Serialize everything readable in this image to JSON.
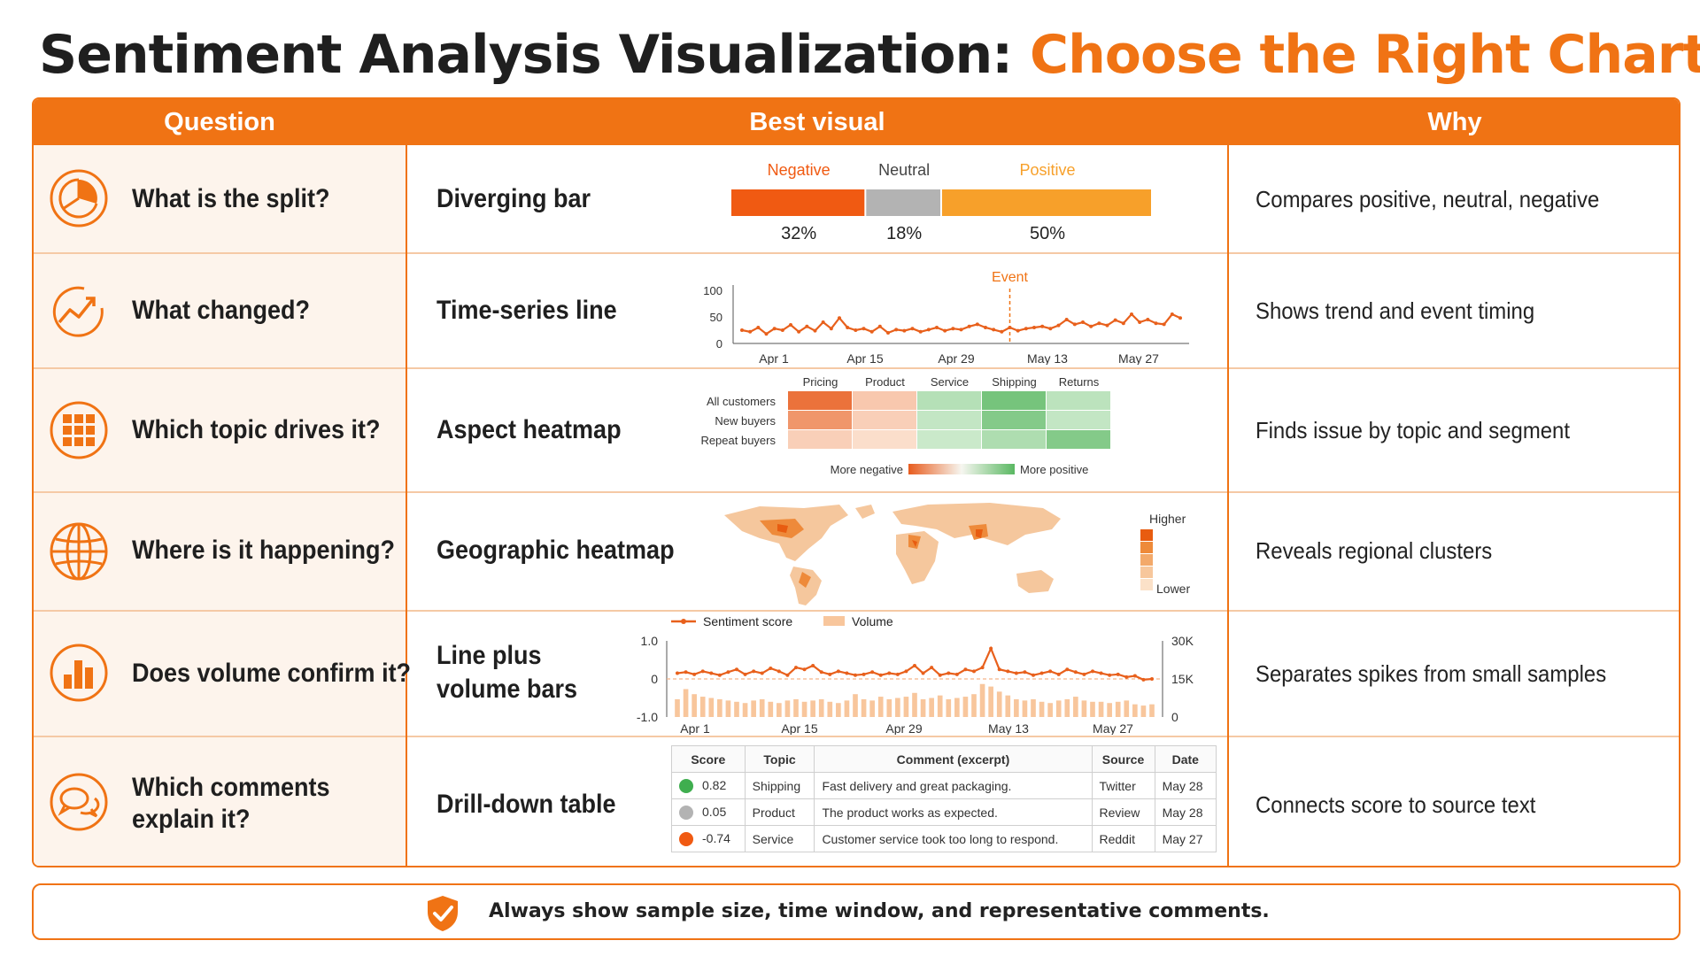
{
  "title": {
    "part1": "Sentiment Analysis Visualization: ",
    "part2": "Choose the Right Chart"
  },
  "colors": {
    "accent": "#f07314",
    "negative": "#f05a12",
    "neutral": "#b3b3b3",
    "positive": "#f7a02a",
    "positive_green": "#3fae4f"
  },
  "headers": {
    "question": "Question",
    "visual": "Best visual",
    "why": "Why"
  },
  "rows": [
    {
      "icon": "pie-chart-icon",
      "question": "What is the split?",
      "visual": "Diverging bar",
      "why": "Compares positive, neutral, negative"
    },
    {
      "icon": "trend-line-icon",
      "question": "What changed?",
      "visual": "Time-series line",
      "why": "Shows trend and event timing"
    },
    {
      "icon": "grid-icon",
      "question": "Which topic drives it?",
      "visual": "Aspect heatmap",
      "why": "Finds issue by topic and segment"
    },
    {
      "icon": "globe-icon",
      "question": "Where is it happening?",
      "visual": "Geographic heatmap",
      "why": "Reveals regional clusters"
    },
    {
      "icon": "bar-chart-icon",
      "question": "Does volume confirm it?",
      "visual_l1": "Line plus",
      "visual_l2": "volume bars",
      "why": "Separates spikes from small samples"
    },
    {
      "icon": "chat-bubbles-icon",
      "question_l1": "Which comments",
      "question_l2": "explain it?",
      "visual": "Drill-down table",
      "why": "Connects score to source text"
    }
  ],
  "chart_data": [
    {
      "type": "bar",
      "categories": [
        "Negative",
        "Neutral",
        "Positive"
      ],
      "values": [
        32,
        18,
        50
      ],
      "value_labels": [
        "32%",
        "18%",
        "50%"
      ]
    },
    {
      "type": "line",
      "x_ticks": [
        "Apr 1",
        "Apr 15",
        "Apr 29",
        "May 13",
        "May 27"
      ],
      "y_ticks": [
        "100",
        "50",
        "0"
      ],
      "ylim": [
        0,
        100
      ],
      "values": [
        25,
        22,
        30,
        18,
        28,
        25,
        35,
        22,
        32,
        24,
        40,
        28,
        48,
        30,
        25,
        28,
        22,
        32,
        20,
        26,
        24,
        28,
        22,
        26,
        30,
        24,
        28,
        26,
        32,
        36,
        30,
        26,
        22,
        30,
        24,
        28,
        30,
        32,
        28,
        34,
        45,
        36,
        40,
        32,
        38,
        34,
        44,
        38,
        55,
        40,
        45,
        38,
        36,
        55,
        48
      ],
      "event_index": 33,
      "event_label": "Event"
    },
    {
      "type": "heatmap",
      "columns": [
        "Pricing",
        "Product",
        "Service",
        "Shipping",
        "Returns"
      ],
      "rows": [
        "All customers",
        "New buyers",
        "Repeat buyers"
      ],
      "values": [
        [
          -0.85,
          -0.25,
          0.35,
          0.8,
          0.3
        ],
        [
          -0.6,
          -0.2,
          0.25,
          0.7,
          0.25
        ],
        [
          -0.2,
          -0.1,
          0.2,
          0.4,
          0.7
        ]
      ],
      "legend_left": "More negative",
      "legend_right": "More positive"
    },
    {
      "type": "heatmap",
      "legend_high": "Higher",
      "legend_low": "Lower"
    },
    {
      "type": "line",
      "legend_line": "Sentiment score",
      "legend_bars": "Volume",
      "x_ticks": [
        "Apr 1",
        "Apr 15",
        "Apr 29",
        "May 13",
        "May 27"
      ],
      "y_left_ticks": [
        "1.0",
        "0",
        "-1.0"
      ],
      "y_right_ticks": [
        "30K",
        "15K",
        "0"
      ],
      "ylim_left": [
        -1,
        1
      ],
      "ylim_right": [
        0,
        30000
      ],
      "sentiment": [
        0.15,
        0.18,
        0.12,
        0.2,
        0.15,
        0.1,
        0.18,
        0.25,
        0.12,
        0.2,
        0.15,
        0.28,
        0.2,
        0.1,
        0.3,
        0.25,
        0.35,
        0.18,
        0.12,
        0.2,
        0.15,
        0.1,
        0.12,
        0.18,
        0.1,
        0.15,
        0.12,
        0.2,
        0.35,
        0.15,
        0.3,
        0.1,
        0.15,
        0.12,
        0.25,
        0.2,
        0.18,
        0.15,
        0.12,
        0.2,
        0.15,
        0.18,
        0.1,
        0.15,
        0.2,
        0.12,
        0.25,
        0.18,
        0.12,
        0.2,
        0.15,
        0.1,
        0.12,
        0.05,
        0.08,
        -0.02,
        0.0
      ],
      "volume": [
        7000,
        11000,
        9000,
        8000,
        7500,
        7000,
        6500,
        6000,
        5500,
        6500,
        7000,
        6000,
        5500,
        6500,
        7000,
        6000,
        6500,
        7000,
        6000,
        5500,
        6500,
        9000,
        7000,
        6500,
        8000,
        7000,
        7500,
        8000,
        9500,
        7000,
        7500,
        8500,
        7000,
        7500,
        8000,
        9000,
        13000,
        12000,
        10000,
        8500,
        7000,
        6500,
        7000,
        6000,
        5500,
        6500,
        7000,
        8000,
        6500,
        6000,
        6000,
        5500,
        6000,
        6500,
        5000,
        4500,
        5000
      ],
      "spike_index": 37
    },
    {
      "type": "table",
      "columns": [
        "Score",
        "Topic",
        "Comment (excerpt)",
        "Source",
        "Date"
      ],
      "rows": [
        {
          "color": "#3fae4f",
          "score": "0.82",
          "topic": "Shipping",
          "comment": "Fast delivery and great packaging.",
          "source": "Twitter",
          "date": "May 28"
        },
        {
          "color": "#b3b3b3",
          "score": "0.05",
          "topic": "Product",
          "comment": "The product works as expected.",
          "source": "Review",
          "date": "May 28"
        },
        {
          "color": "#f05a12",
          "score": "-0.74",
          "topic": "Service",
          "comment": "Customer service took too long to respond.",
          "source": "Reddit",
          "date": "May 27"
        }
      ]
    }
  ],
  "banner": {
    "icon": "shield-check-icon",
    "text": "Always show sample size, time window, and representative comments."
  }
}
